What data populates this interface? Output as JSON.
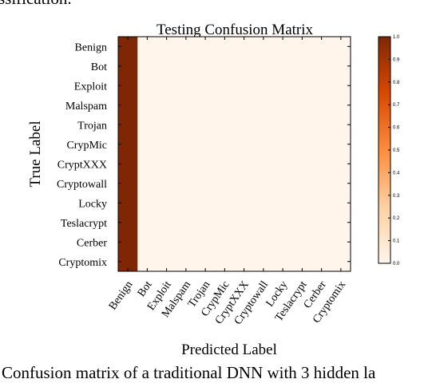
{
  "header_fragment": "ssification.",
  "caption_fragment": "Confusion matrix of a traditional DNN with 3 hidden la",
  "chart_data": {
    "type": "heatmap",
    "title": "Testing Confusion Matrix",
    "xlabel": "Predicted Label",
    "ylabel": "True Label",
    "labels": [
      "Benign",
      "Bot",
      "Exploit",
      "Malspam",
      "Trojan",
      "CrypMic",
      "CryptXXX",
      "Cryptowall",
      "Locky",
      "Teslacrypt",
      "Cerber",
      "Cryptomix"
    ],
    "matrix": [
      [
        1,
        0,
        0,
        0,
        0,
        0,
        0,
        0,
        0,
        0,
        0,
        0
      ],
      [
        1,
        0,
        0,
        0,
        0,
        0,
        0,
        0,
        0,
        0,
        0,
        0
      ],
      [
        1,
        0,
        0,
        0,
        0,
        0,
        0,
        0,
        0,
        0,
        0,
        0
      ],
      [
        1,
        0,
        0,
        0,
        0,
        0,
        0,
        0,
        0,
        0,
        0,
        0
      ],
      [
        1,
        0,
        0,
        0,
        0,
        0,
        0,
        0,
        0,
        0,
        0,
        0
      ],
      [
        1,
        0,
        0,
        0,
        0,
        0,
        0,
        0,
        0,
        0,
        0,
        0
      ],
      [
        1,
        0,
        0,
        0,
        0,
        0,
        0,
        0,
        0,
        0,
        0,
        0
      ],
      [
        1,
        0,
        0,
        0,
        0,
        0,
        0,
        0,
        0,
        0,
        0,
        0
      ],
      [
        1,
        0,
        0,
        0,
        0,
        0,
        0,
        0,
        0,
        0,
        0,
        0
      ],
      [
        1,
        0,
        0,
        0,
        0,
        0,
        0,
        0,
        0,
        0,
        0,
        0
      ],
      [
        1,
        0,
        0,
        0,
        0,
        0,
        0,
        0,
        0,
        0,
        0,
        0
      ],
      [
        1,
        0,
        0,
        0,
        0,
        0,
        0,
        0,
        0,
        0,
        0,
        0
      ]
    ],
    "colorbar": {
      "range": [
        0,
        1
      ],
      "ticks": [
        "0.0",
        "0.1",
        "0.2",
        "0.3",
        "0.4",
        "0.5",
        "0.6",
        "0.7",
        "0.8",
        "0.9",
        "1.0"
      ],
      "color_low": "#fff5eb",
      "color_high": "#7f2704"
    }
  }
}
